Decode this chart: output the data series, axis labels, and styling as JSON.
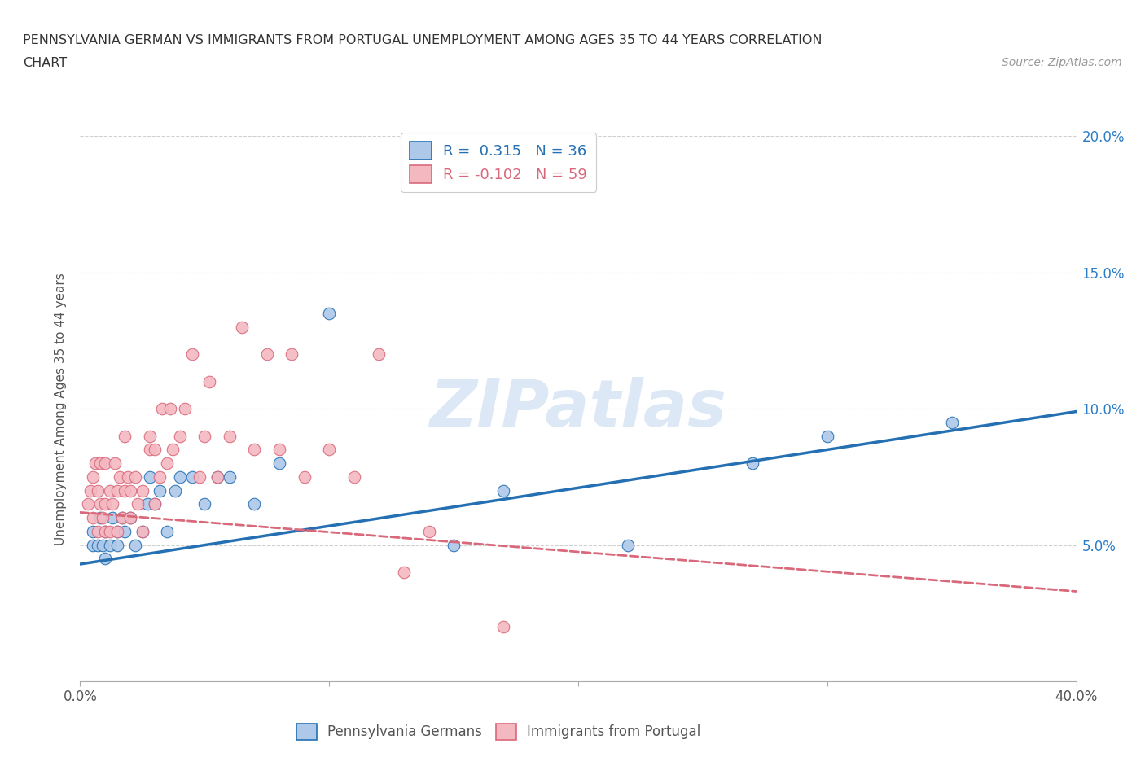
{
  "title_line1": "PENNSYLVANIA GERMAN VS IMMIGRANTS FROM PORTUGAL UNEMPLOYMENT AMONG AGES 35 TO 44 YEARS CORRELATION",
  "title_line2": "CHART",
  "source_text": "Source: ZipAtlas.com",
  "ylabel": "Unemployment Among Ages 35 to 44 years",
  "xmin": 0.0,
  "xmax": 0.4,
  "ymin": 0.0,
  "ymax": 0.2,
  "xticks": [
    0.0,
    0.1,
    0.2,
    0.3,
    0.4
  ],
  "yticks": [
    0.0,
    0.05,
    0.1,
    0.15,
    0.2
  ],
  "blue_R": 0.315,
  "blue_N": 36,
  "pink_R": -0.102,
  "pink_N": 59,
  "blue_fill_color": "#adc8e8",
  "pink_fill_color": "#f4b8c1",
  "blue_line_color": "#2470b3",
  "pink_line_color": "#d9687a",
  "legend1": "Pennsylvania Germans",
  "legend2": "Immigrants from Portugal",
  "watermark_color": "#dce8f5",
  "blue_trend_y0": 0.043,
  "blue_trend_y1": 0.099,
  "pink_trend_y0": 0.062,
  "pink_trend_y1": 0.033,
  "blue_points_x": [
    0.005,
    0.005,
    0.007,
    0.008,
    0.009,
    0.01,
    0.01,
    0.012,
    0.013,
    0.015,
    0.015,
    0.017,
    0.018,
    0.02,
    0.022,
    0.025,
    0.027,
    0.028,
    0.03,
    0.032,
    0.035,
    0.038,
    0.04,
    0.045,
    0.05,
    0.055,
    0.06,
    0.07,
    0.08,
    0.1,
    0.15,
    0.17,
    0.22,
    0.27,
    0.3,
    0.35
  ],
  "blue_points_y": [
    0.05,
    0.055,
    0.05,
    0.06,
    0.05,
    0.045,
    0.055,
    0.05,
    0.06,
    0.05,
    0.055,
    0.06,
    0.055,
    0.06,
    0.05,
    0.055,
    0.065,
    0.075,
    0.065,
    0.07,
    0.055,
    0.07,
    0.075,
    0.075,
    0.065,
    0.075,
    0.075,
    0.065,
    0.08,
    0.135,
    0.05,
    0.07,
    0.05,
    0.08,
    0.09,
    0.095
  ],
  "pink_points_x": [
    0.003,
    0.004,
    0.005,
    0.005,
    0.006,
    0.007,
    0.007,
    0.008,
    0.008,
    0.009,
    0.01,
    0.01,
    0.01,
    0.012,
    0.012,
    0.013,
    0.014,
    0.015,
    0.015,
    0.016,
    0.017,
    0.018,
    0.018,
    0.019,
    0.02,
    0.02,
    0.022,
    0.023,
    0.025,
    0.025,
    0.028,
    0.028,
    0.03,
    0.03,
    0.032,
    0.033,
    0.035,
    0.036,
    0.037,
    0.04,
    0.042,
    0.045,
    0.048,
    0.05,
    0.052,
    0.055,
    0.06,
    0.065,
    0.07,
    0.075,
    0.08,
    0.085,
    0.09,
    0.1,
    0.11,
    0.12,
    0.13,
    0.14,
    0.17
  ],
  "pink_points_y": [
    0.065,
    0.07,
    0.06,
    0.075,
    0.08,
    0.055,
    0.07,
    0.065,
    0.08,
    0.06,
    0.055,
    0.065,
    0.08,
    0.055,
    0.07,
    0.065,
    0.08,
    0.055,
    0.07,
    0.075,
    0.06,
    0.07,
    0.09,
    0.075,
    0.06,
    0.07,
    0.075,
    0.065,
    0.055,
    0.07,
    0.085,
    0.09,
    0.065,
    0.085,
    0.075,
    0.1,
    0.08,
    0.1,
    0.085,
    0.09,
    0.1,
    0.12,
    0.075,
    0.09,
    0.11,
    0.075,
    0.09,
    0.13,
    0.085,
    0.12,
    0.085,
    0.12,
    0.075,
    0.085,
    0.075,
    0.12,
    0.04,
    0.055,
    0.02
  ]
}
